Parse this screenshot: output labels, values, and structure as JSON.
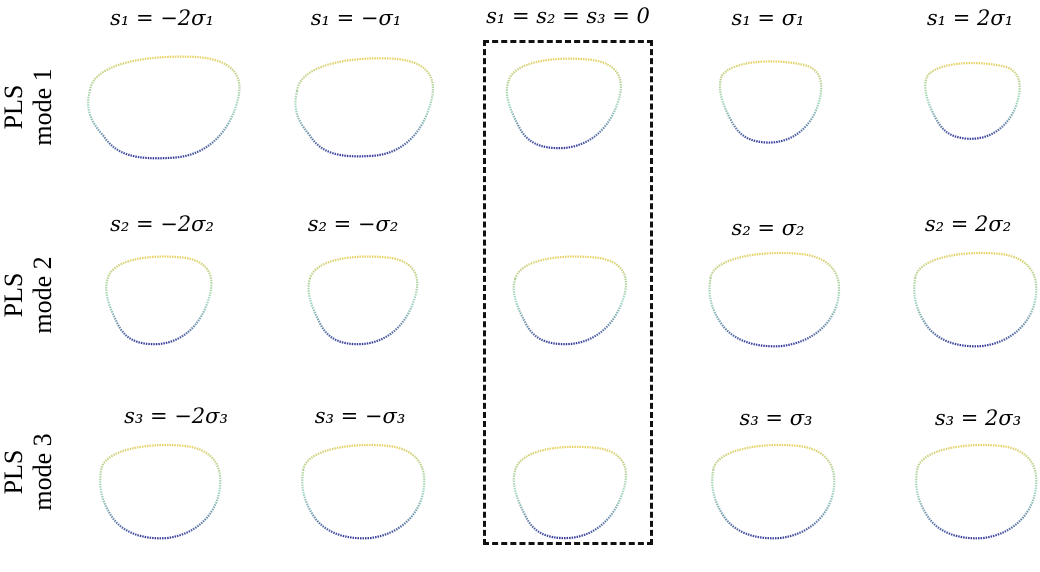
{
  "baseline_label": "s₁ = s₂ = s₃ = 0",
  "rows": [
    {
      "label_line1": "PLS",
      "label_line2": "mode 1",
      "cells": [
        "s₁ = −2σ₁",
        "s₁ = −σ₁",
        "s₁ = σ₁",
        "s₁ = 2σ₁"
      ]
    },
    {
      "label_line1": "PLS",
      "label_line2": "mode 2",
      "cells": [
        "s₂ = −2σ₂",
        "s₂ = −σ₂",
        "s₂ = σ₂",
        "s₂ = 2σ₂"
      ]
    },
    {
      "label_line1": "PLS",
      "label_line2": "mode 3",
      "cells": [
        "s₃ = −2σ₃",
        "s₃ = −σ₃",
        "s₃ = σ₃",
        "s₃ = 2σ₃"
      ]
    }
  ],
  "colors": {
    "top": "#e8cf5a",
    "mid": "#5ab88e",
    "bottom": "#2b2f96",
    "frame": "#111111"
  }
}
